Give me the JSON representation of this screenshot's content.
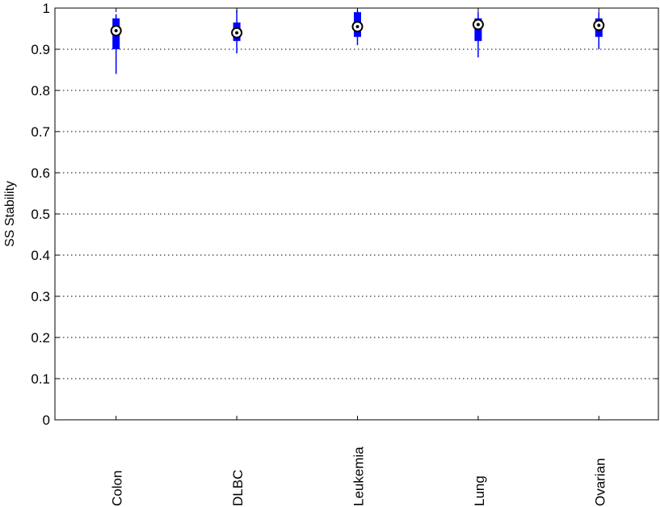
{
  "chart_data": {
    "type": "boxplot",
    "title": "",
    "xlabel": "",
    "ylabel": "SS Stability",
    "ylim": [
      0,
      1
    ],
    "yticks": [
      0,
      0.1,
      0.2,
      0.3,
      0.4,
      0.5,
      0.6,
      0.7,
      0.8,
      0.9,
      1
    ],
    "ytick_labels": [
      "0",
      "0.1",
      "0.2",
      "0.3",
      "0.4",
      "0.5",
      "0.6",
      "0.7",
      "0.8",
      "0.9",
      "1"
    ],
    "grid": "horizontal dotted",
    "categories": [
      "Colon",
      "DLBC",
      "Leukemia",
      "Lung",
      "Ovarian"
    ],
    "boxes": [
      {
        "category": "Colon",
        "whisker_low": 0.84,
        "q1": 0.9,
        "median": 0.945,
        "q3": 0.975,
        "whisker_high": 0.985
      },
      {
        "category": "DLBC",
        "whisker_low": 0.89,
        "q1": 0.92,
        "median": 0.94,
        "q3": 0.965,
        "whisker_high": 0.995
      },
      {
        "category": "Leukemia",
        "whisker_low": 0.91,
        "q1": 0.93,
        "median": 0.955,
        "q3": 0.99,
        "whisker_high": 0.995
      },
      {
        "category": "Lung",
        "whisker_low": 0.88,
        "q1": 0.92,
        "median": 0.96,
        "q3": 0.975,
        "whisker_high": 0.99
      },
      {
        "category": "Ovarian",
        "whisker_low": 0.9,
        "q1": 0.93,
        "median": 0.958,
        "q3": 0.975,
        "whisker_high": 0.99
      }
    ],
    "colors": {
      "box": "#0000ff",
      "grid": "#000000",
      "axis": "#000000",
      "median_marker": "#000000"
    }
  }
}
